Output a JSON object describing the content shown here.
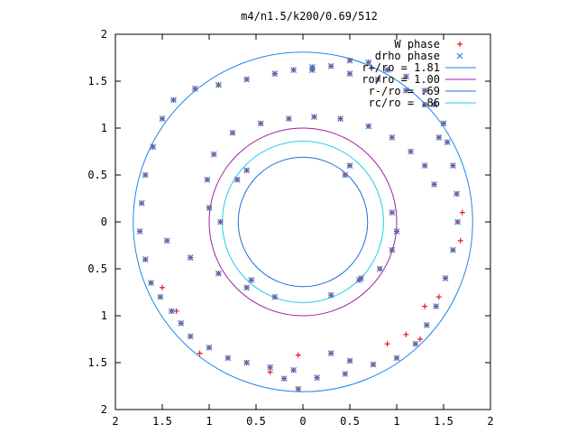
{
  "chart_data": {
    "type": "scatter",
    "title": "m4/n1.5/k200/0.69/512",
    "xlabel": "",
    "ylabel": "",
    "xlim": [
      -2,
      2
    ],
    "ylim": [
      -2,
      2
    ],
    "x_ticks": [
      "2",
      "1.5",
      "1",
      "0.5",
      "0",
      "0.5",
      "1",
      "1.5",
      "2"
    ],
    "y_ticks": [
      "2",
      "1.5",
      "1",
      "0.5",
      "0",
      "0.5",
      "1",
      "1.5",
      "2"
    ],
    "x_tick_values": [
      -2,
      -1.5,
      -1,
      -0.5,
      0,
      0.5,
      1,
      1.5,
      2
    ],
    "y_tick_values": [
      2,
      1.5,
      1,
      0.5,
      0,
      -0.5,
      -1,
      -1.5,
      -2
    ],
    "legend_position": "top-right",
    "grid": false,
    "legend": [
      {
        "label": "W phase",
        "type": "point",
        "marker": "plus",
        "color": "#e8171e"
      },
      {
        "label": "drho phase",
        "type": "point",
        "marker": "cross",
        "color": "#1e8ae8"
      },
      {
        "label": "r+/ro = 1.81",
        "type": "line",
        "color": "#1e88e8"
      },
      {
        "label": "ro/ro = 1.00",
        "type": "line",
        "color": "#a020a0"
      },
      {
        "label": "r-/ro = .69",
        "type": "line",
        "color": "#1e70d8"
      },
      {
        "label": "rc/ro = .86",
        "type": "line",
        "color": "#1ecfe0"
      }
    ],
    "circles": [
      {
        "r": 1.81,
        "color": "#1e88e8"
      },
      {
        "r": 1.0,
        "color": "#a020a0"
      },
      {
        "r": 0.69,
        "color": "#1e70d8"
      },
      {
        "r": 0.86,
        "color": "#1ecfe0"
      }
    ],
    "series": [
      {
        "name": "W phase",
        "marker_color": "#e8171e",
        "points": [
          [
            1.54,
            0.85
          ],
          [
            1.5,
            1.05
          ],
          [
            1.4,
            1.25
          ],
          [
            1.3,
            1.4
          ],
          [
            1.1,
            1.55
          ],
          [
            0.9,
            1.62
          ],
          [
            0.7,
            1.7
          ],
          [
            0.5,
            1.72
          ],
          [
            0.3,
            1.66
          ],
          [
            0.1,
            1.62
          ],
          [
            -0.1,
            1.62
          ],
          [
            -0.3,
            1.58
          ],
          [
            -0.6,
            1.52
          ],
          [
            -0.9,
            1.46
          ],
          [
            -1.15,
            1.42
          ],
          [
            -1.38,
            1.3
          ],
          [
            -1.5,
            1.1
          ],
          [
            -1.6,
            0.8
          ],
          [
            -1.68,
            0.5
          ],
          [
            -1.72,
            0.2
          ],
          [
            -1.74,
            -0.1
          ],
          [
            -1.68,
            -0.4
          ],
          [
            -1.62,
            -0.65
          ],
          [
            -1.52,
            -0.8
          ],
          [
            -1.4,
            -0.95
          ],
          [
            -1.3,
            -1.08
          ],
          [
            -1.2,
            -1.22
          ],
          [
            -1.0,
            -1.34
          ],
          [
            -0.8,
            -1.45
          ],
          [
            -0.6,
            -1.5
          ],
          [
            -0.35,
            -1.55
          ],
          [
            -0.1,
            -1.58
          ],
          [
            0.15,
            -1.66
          ],
          [
            -0.05,
            -1.78
          ],
          [
            0.1,
            1.65
          ],
          [
            0.5,
            1.58
          ],
          [
            0.8,
            1.52
          ],
          [
            1.1,
            1.4
          ],
          [
            1.3,
            1.25
          ],
          [
            1.45,
            0.9
          ],
          [
            1.6,
            0.6
          ],
          [
            1.64,
            0.3
          ],
          [
            1.65,
            0.0
          ],
          [
            1.6,
            -0.3
          ],
          [
            1.52,
            -0.6
          ],
          [
            1.42,
            -0.9
          ],
          [
            1.32,
            -1.1
          ],
          [
            1.2,
            -1.3
          ],
          [
            1.0,
            -1.45
          ],
          [
            0.75,
            -1.52
          ],
          [
            0.5,
            -1.48
          ],
          [
            0.3,
            -1.4
          ],
          [
            0.45,
            -1.62
          ],
          [
            -0.2,
            -1.67
          ],
          [
            0.3,
            -0.78
          ],
          [
            0.6,
            -0.62
          ],
          [
            0.82,
            -0.5
          ],
          [
            0.95,
            -0.3
          ],
          [
            1.0,
            -0.1
          ],
          [
            0.95,
            0.1
          ],
          [
            -0.3,
            -0.8
          ],
          [
            -0.6,
            -0.7
          ],
          [
            -0.9,
            -0.55
          ],
          [
            -1.2,
            -0.38
          ],
          [
            -1.45,
            -0.2
          ],
          [
            -0.15,
            1.1
          ],
          [
            -0.45,
            1.05
          ],
          [
            -0.75,
            0.95
          ],
          [
            -0.95,
            0.72
          ],
          [
            -1.02,
            0.45
          ],
          [
            -1.0,
            0.15
          ],
          [
            -0.88,
            0.0
          ],
          [
            0.12,
            1.12
          ],
          [
            0.4,
            1.1
          ],
          [
            0.7,
            1.02
          ],
          [
            0.95,
            0.9
          ],
          [
            1.15,
            0.75
          ],
          [
            1.3,
            0.6
          ],
          [
            1.4,
            0.4
          ],
          [
            -0.6,
            0.55
          ],
          [
            -0.7,
            0.45
          ],
          [
            0.5,
            0.6
          ],
          [
            0.45,
            0.5
          ],
          [
            -0.55,
            -0.62
          ],
          [
            0.62,
            -0.6
          ],
          [
            1.7,
            0.1
          ],
          [
            1.68,
            -0.2
          ],
          [
            1.3,
            -0.9
          ],
          [
            1.1,
            -1.2
          ],
          [
            0.9,
            -1.3
          ],
          [
            -1.5,
            -0.7
          ],
          [
            -1.35,
            -0.95
          ],
          [
            1.25,
            -1.25
          ],
          [
            1.45,
            -0.8
          ],
          [
            -0.05,
            -1.42
          ],
          [
            -0.35,
            -1.6
          ],
          [
            -1.1,
            -1.4
          ]
        ]
      },
      {
        "name": "drho phase",
        "marker_color": "#1e8ae8",
        "points": [
          [
            1.54,
            0.85
          ],
          [
            1.5,
            1.05
          ],
          [
            1.4,
            1.25
          ],
          [
            1.3,
            1.4
          ],
          [
            1.1,
            1.55
          ],
          [
            0.9,
            1.62
          ],
          [
            0.7,
            1.7
          ],
          [
            0.5,
            1.72
          ],
          [
            0.3,
            1.66
          ],
          [
            0.1,
            1.62
          ],
          [
            -0.1,
            1.62
          ],
          [
            -0.3,
            1.58
          ],
          [
            -0.6,
            1.52
          ],
          [
            -0.9,
            1.46
          ],
          [
            -1.15,
            1.42
          ],
          [
            -1.38,
            1.3
          ],
          [
            -1.5,
            1.1
          ],
          [
            -1.6,
            0.8
          ],
          [
            -1.68,
            0.5
          ],
          [
            -1.72,
            0.2
          ],
          [
            -1.74,
            -0.1
          ],
          [
            -1.68,
            -0.4
          ],
          [
            -1.62,
            -0.65
          ],
          [
            -1.52,
            -0.8
          ],
          [
            -1.4,
            -0.95
          ],
          [
            -1.3,
            -1.08
          ],
          [
            -1.2,
            -1.22
          ],
          [
            -1.0,
            -1.34
          ],
          [
            -0.8,
            -1.45
          ],
          [
            -0.6,
            -1.5
          ],
          [
            -0.35,
            -1.55
          ],
          [
            -0.1,
            -1.58
          ],
          [
            0.15,
            -1.66
          ],
          [
            -0.05,
            -1.78
          ],
          [
            0.1,
            1.65
          ],
          [
            0.5,
            1.58
          ],
          [
            0.8,
            1.52
          ],
          [
            1.1,
            1.4
          ],
          [
            1.3,
            1.25
          ],
          [
            1.45,
            0.9
          ],
          [
            1.6,
            0.6
          ],
          [
            1.64,
            0.3
          ],
          [
            1.65,
            0.0
          ],
          [
            1.6,
            -0.3
          ],
          [
            1.52,
            -0.6
          ],
          [
            1.42,
            -0.9
          ],
          [
            1.32,
            -1.1
          ],
          [
            1.2,
            -1.3
          ],
          [
            1.0,
            -1.45
          ],
          [
            0.75,
            -1.52
          ],
          [
            0.5,
            -1.48
          ],
          [
            0.3,
            -1.4
          ],
          [
            0.45,
            -1.62
          ],
          [
            -0.2,
            -1.67
          ],
          [
            0.3,
            -0.78
          ],
          [
            0.6,
            -0.62
          ],
          [
            0.82,
            -0.5
          ],
          [
            0.95,
            -0.3
          ],
          [
            1.0,
            -0.1
          ],
          [
            0.95,
            0.1
          ],
          [
            -0.3,
            -0.8
          ],
          [
            -0.6,
            -0.7
          ],
          [
            -0.9,
            -0.55
          ],
          [
            -1.2,
            -0.38
          ],
          [
            -1.45,
            -0.2
          ],
          [
            -0.15,
            1.1
          ],
          [
            -0.45,
            1.05
          ],
          [
            -0.75,
            0.95
          ],
          [
            -0.95,
            0.72
          ],
          [
            -1.02,
            0.45
          ],
          [
            -1.0,
            0.15
          ],
          [
            -0.88,
            0.0
          ],
          [
            0.12,
            1.12
          ],
          [
            0.4,
            1.1
          ],
          [
            0.7,
            1.02
          ],
          [
            0.95,
            0.9
          ],
          [
            1.15,
            0.75
          ],
          [
            1.3,
            0.6
          ],
          [
            1.4,
            0.4
          ],
          [
            -0.6,
            0.55
          ],
          [
            -0.7,
            0.45
          ],
          [
            0.5,
            0.6
          ],
          [
            0.45,
            0.5
          ],
          [
            -0.55,
            -0.62
          ],
          [
            0.62,
            -0.6
          ]
        ]
      }
    ]
  }
}
